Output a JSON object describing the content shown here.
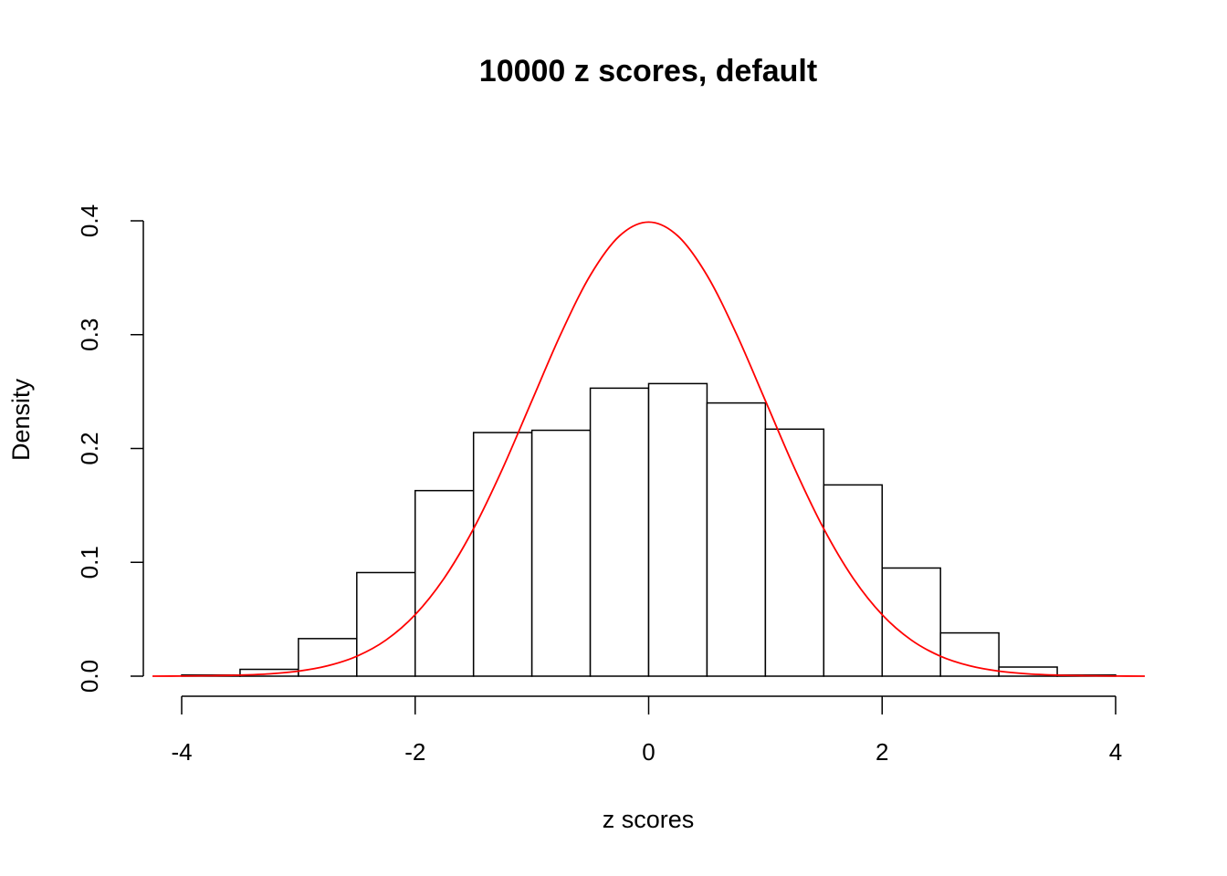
{
  "chart_data": {
    "type": "histogram",
    "title": "10000 z scores, default",
    "xlabel": "z scores",
    "ylabel": "Density",
    "bins": [
      -4,
      -3.5,
      -3,
      -2.5,
      -2,
      -1.5,
      -1,
      -0.5,
      0,
      0.5,
      1,
      1.5,
      2,
      2.5,
      3,
      3.5,
      4
    ],
    "values": [
      0.001,
      0.006,
      0.033,
      0.091,
      0.163,
      0.214,
      0.216,
      0.253,
      0.257,
      0.24,
      0.217,
      0.168,
      0.095,
      0.038,
      0.008,
      0.001
    ],
    "bar_fill": "#ffffff",
    "bar_edge": "#000000",
    "curve": {
      "color": "#ff0000",
      "x": [
        -4.25,
        -4,
        -3.75,
        -3.5,
        -3.25,
        -3,
        -2.75,
        -2.5,
        -2.25,
        -2,
        -1.75,
        -1.5,
        -1.25,
        -1,
        -0.75,
        -0.5,
        -0.25,
        0,
        0.25,
        0.5,
        0.75,
        1,
        1.25,
        1.5,
        1.75,
        2,
        2.25,
        2.5,
        2.75,
        3,
        3.25,
        3.5,
        3.75,
        4,
        4.25
      ],
      "values": [
        0.0,
        0.0001,
        0.0004,
        0.0009,
        0.002,
        0.0044,
        0.0091,
        0.0175,
        0.0317,
        0.054,
        0.0863,
        0.1295,
        0.1826,
        0.242,
        0.3011,
        0.3521,
        0.3867,
        0.3989,
        0.3867,
        0.3521,
        0.3011,
        0.242,
        0.1826,
        0.1295,
        0.0863,
        0.054,
        0.0317,
        0.0175,
        0.0091,
        0.0044,
        0.002,
        0.0009,
        0.0004,
        0.0001,
        0.0
      ]
    },
    "xlim": [
      -4,
      4
    ],
    "xticks": [
      -4,
      -2,
      0,
      2,
      4
    ],
    "ylim": [
      0,
      0.4
    ],
    "yticks": [
      {
        "value": 0,
        "label": "0.0"
      },
      0.1,
      0.2,
      0.3,
      0.4
    ]
  }
}
